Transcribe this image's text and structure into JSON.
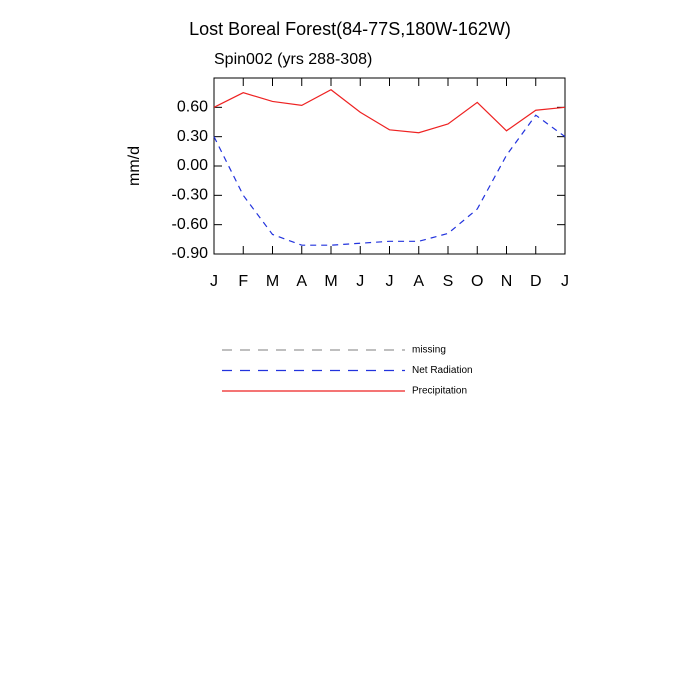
{
  "chart_data": {
    "type": "line",
    "title": "Lost Boreal Forest(84-77S,180W-162W)",
    "subtitle": "Spin002 (yrs 288-308)",
    "y_label": "mm/d",
    "categories": [
      "J",
      "F",
      "M",
      "A",
      "M",
      "J",
      "J",
      "A",
      "S",
      "O",
      "N",
      "D",
      "J"
    ],
    "ylim": [
      -0.9,
      0.9
    ],
    "yticks": [
      {
        "value": 0.6,
        "label": "0.60"
      },
      {
        "value": 0.3,
        "label": "0.30"
      },
      {
        "value": 0,
        "label": "0.00"
      },
      {
        "value": -0.3,
        "label": "-0.30"
      },
      {
        "value": -0.6,
        "label": "-0.60"
      },
      {
        "value": -0.9,
        "label": "-0.90"
      }
    ],
    "series": [
      {
        "name": "missing",
        "color": "#999999",
        "dash": true,
        "values": [
          null,
          null,
          null,
          null,
          null,
          null,
          null,
          null,
          null,
          null,
          null,
          null,
          null
        ]
      },
      {
        "name": "Net Radiation",
        "color": "#2233dd",
        "dash": true,
        "values": [
          0.3,
          -0.3,
          -0.7,
          -0.81,
          -0.81,
          -0.79,
          -0.77,
          -0.77,
          -0.69,
          -0.44,
          0.11,
          0.52,
          0.3
        ]
      },
      {
        "name": "Precipitation",
        "color": "#ee2222",
        "dash": false,
        "values": [
          0.6,
          0.75,
          0.66,
          0.62,
          0.78,
          0.55,
          0.37,
          0.34,
          0.43,
          0.65,
          0.36,
          0.57,
          0.6
        ]
      }
    ]
  }
}
